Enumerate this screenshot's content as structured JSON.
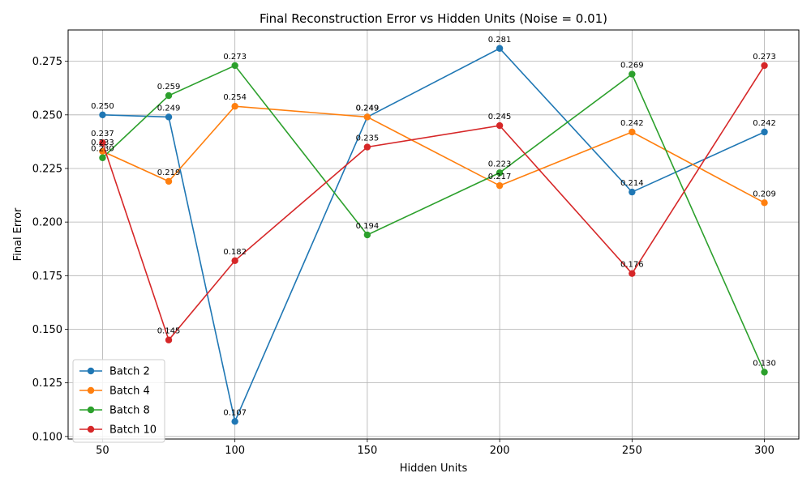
{
  "chart_data": {
    "type": "line",
    "title": "Final Reconstruction Error vs Hidden Units (Noise = 0.01)",
    "xlabel": "Hidden Units",
    "ylabel": "Final Error",
    "x": [
      50,
      75,
      100,
      150,
      200,
      250,
      300
    ],
    "x_ticks": [
      50,
      100,
      150,
      200,
      250,
      300
    ],
    "y_ticks": [
      0.1,
      0.125,
      0.15,
      0.175,
      0.2,
      0.225,
      0.25,
      0.275
    ],
    "xlim": [
      37,
      313
    ],
    "ylim": [
      0.0988,
      0.2896
    ],
    "grid": true,
    "legend_position": "lower-left",
    "series": [
      {
        "name": "Batch 2",
        "color": "#1f77b4",
        "values": [
          0.25,
          0.249,
          0.107,
          0.249,
          0.281,
          0.214,
          0.242
        ]
      },
      {
        "name": "Batch 4",
        "color": "#ff7f0e",
        "values": [
          0.233,
          0.219,
          0.254,
          0.249,
          0.217,
          0.242,
          0.209
        ]
      },
      {
        "name": "Batch 8",
        "color": "#2ca02c",
        "values": [
          0.23,
          0.259,
          0.273,
          0.194,
          0.223,
          0.269,
          0.13
        ]
      },
      {
        "name": "Batch 10",
        "color": "#d62728",
        "values": [
          0.237,
          0.145,
          0.182,
          0.235,
          0.245,
          0.176,
          0.273
        ]
      }
    ]
  }
}
